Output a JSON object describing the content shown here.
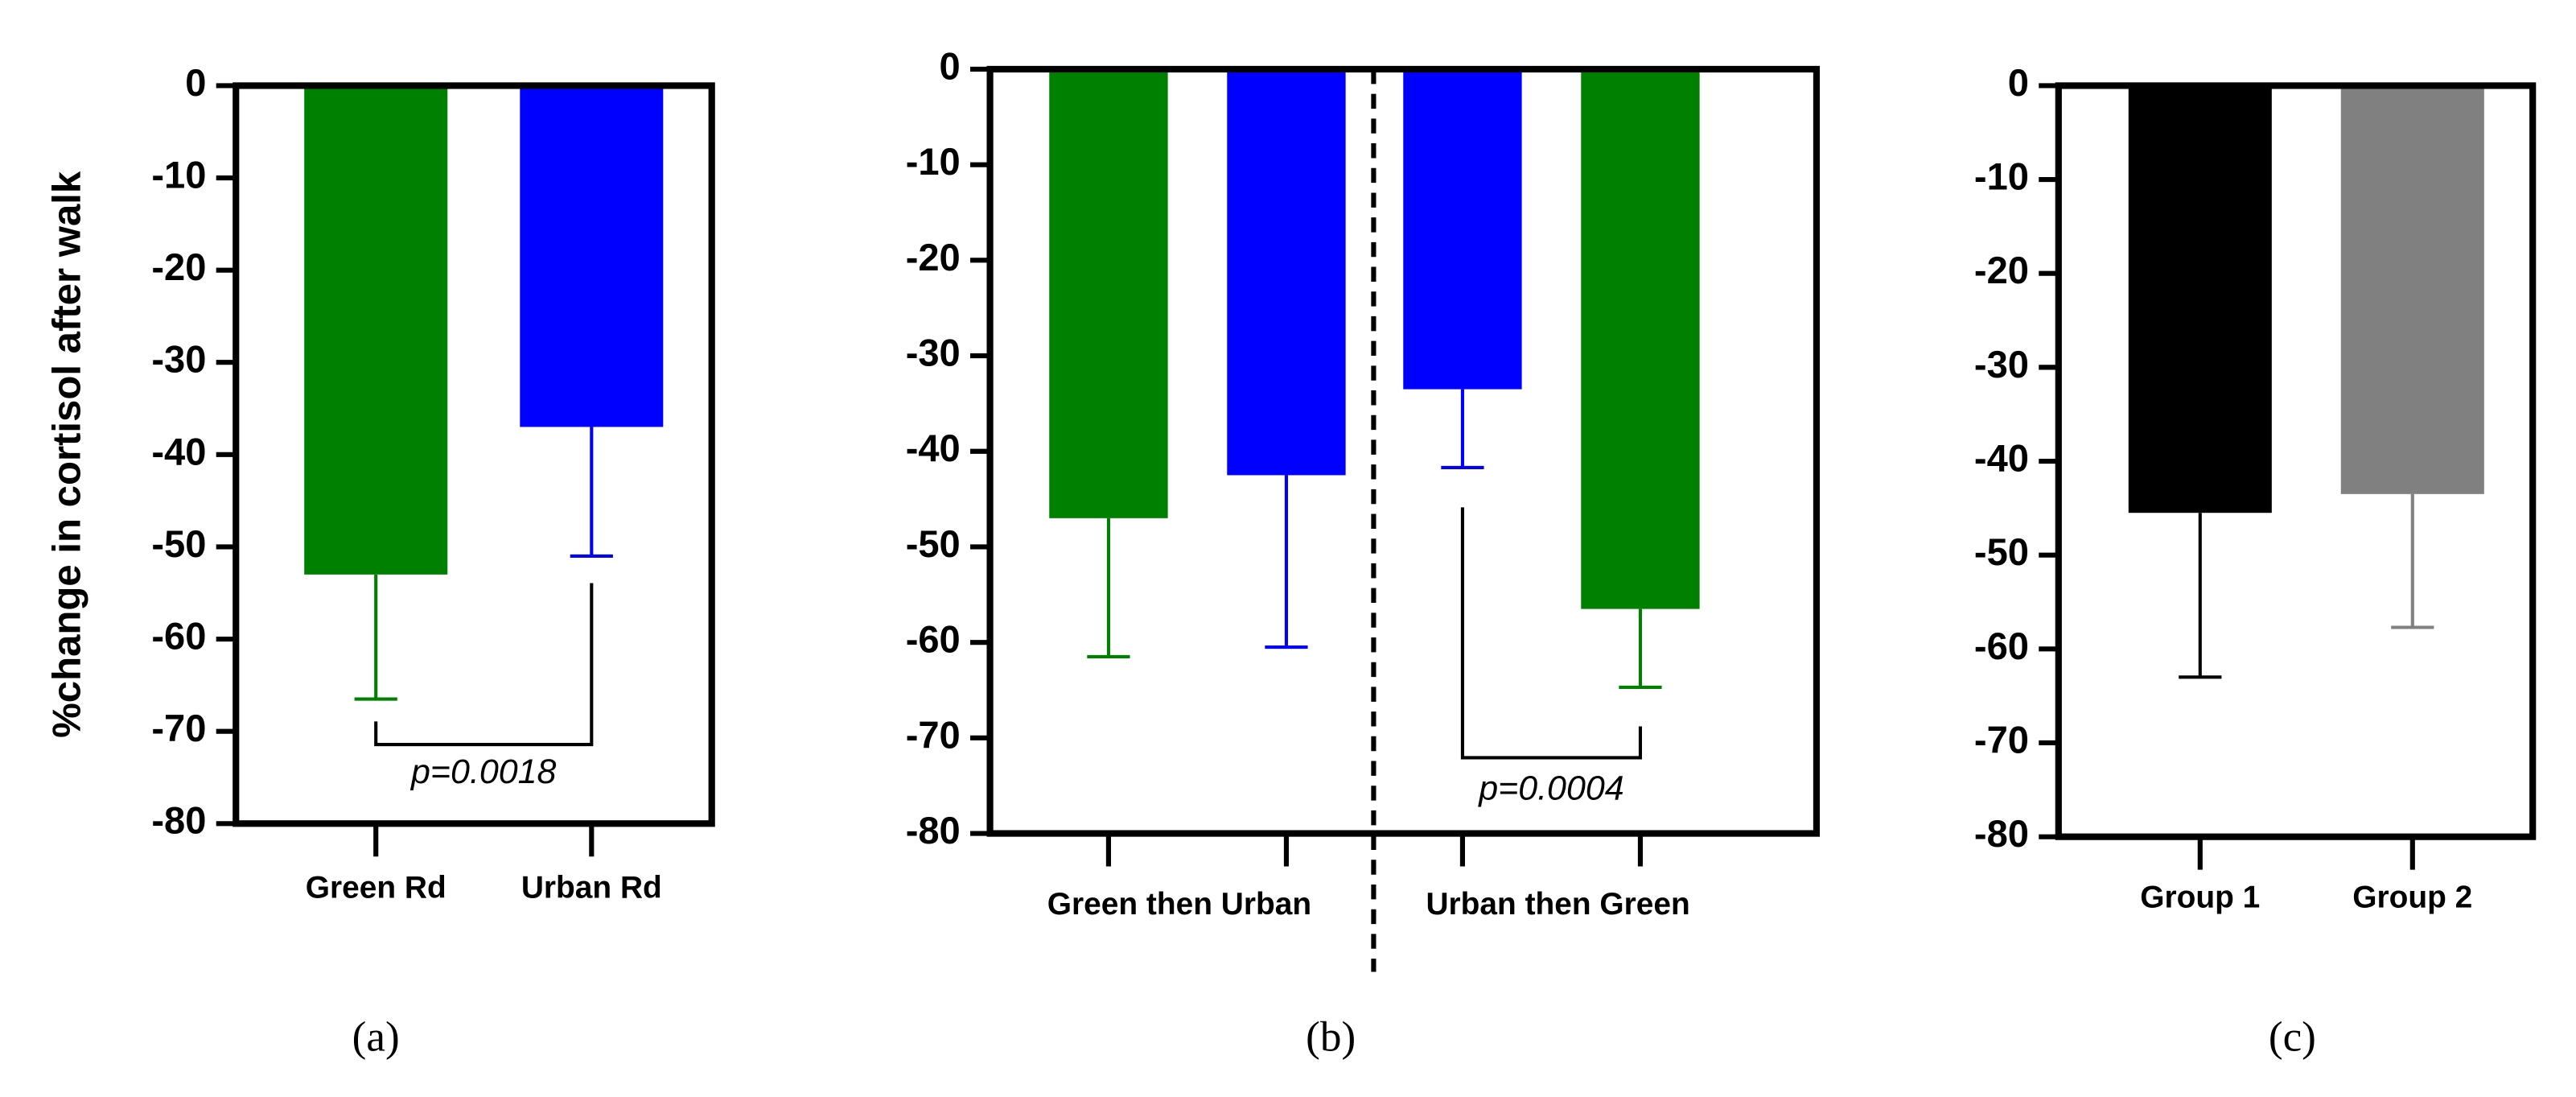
{
  "chart_data": [
    {
      "type": "bar",
      "caption": "(a)",
      "ylabel": "%change in cortisol after walk",
      "categories": [
        "Green Rd",
        "Urban Rd"
      ],
      "values": [
        -53,
        -37
      ],
      "errors": [
        13.5,
        14
      ],
      "colors": [
        "#008000",
        "#0000ff"
      ],
      "ylim": [
        -80,
        0
      ],
      "yticks": [
        0,
        -10,
        -20,
        -30,
        -40,
        -50,
        -60,
        -70,
        -80
      ],
      "annotation": "p=0.0018"
    },
    {
      "type": "bar",
      "caption": "(b)",
      "categories": [
        null,
        null,
        null,
        null
      ],
      "group_labels": [
        "Green then Urban",
        "Urban then Green"
      ],
      "values": [
        -47,
        -42.5,
        -33.5,
        -56.5
      ],
      "errors": [
        14.5,
        18,
        8.2,
        8.2
      ],
      "colors": [
        "#008000",
        "#0000ff",
        "#0000ff",
        "#008000"
      ],
      "ylim": [
        -80,
        0
      ],
      "yticks": [
        0,
        -10,
        -20,
        -30,
        -40,
        -50,
        -60,
        -70,
        -80
      ],
      "annotation": "p=0.0004"
    },
    {
      "type": "bar",
      "caption": "(c)",
      "categories": [
        "Group 1",
        "Group 2"
      ],
      "values": [
        -45.5,
        -43.5
      ],
      "errors": [
        17.5,
        14.2
      ],
      "colors": [
        "#000000",
        "#808080"
      ],
      "ylim": [
        -80,
        0
      ],
      "yticks": [
        0,
        -10,
        -20,
        -30,
        -40,
        -50,
        -60,
        -70,
        -80
      ]
    }
  ]
}
